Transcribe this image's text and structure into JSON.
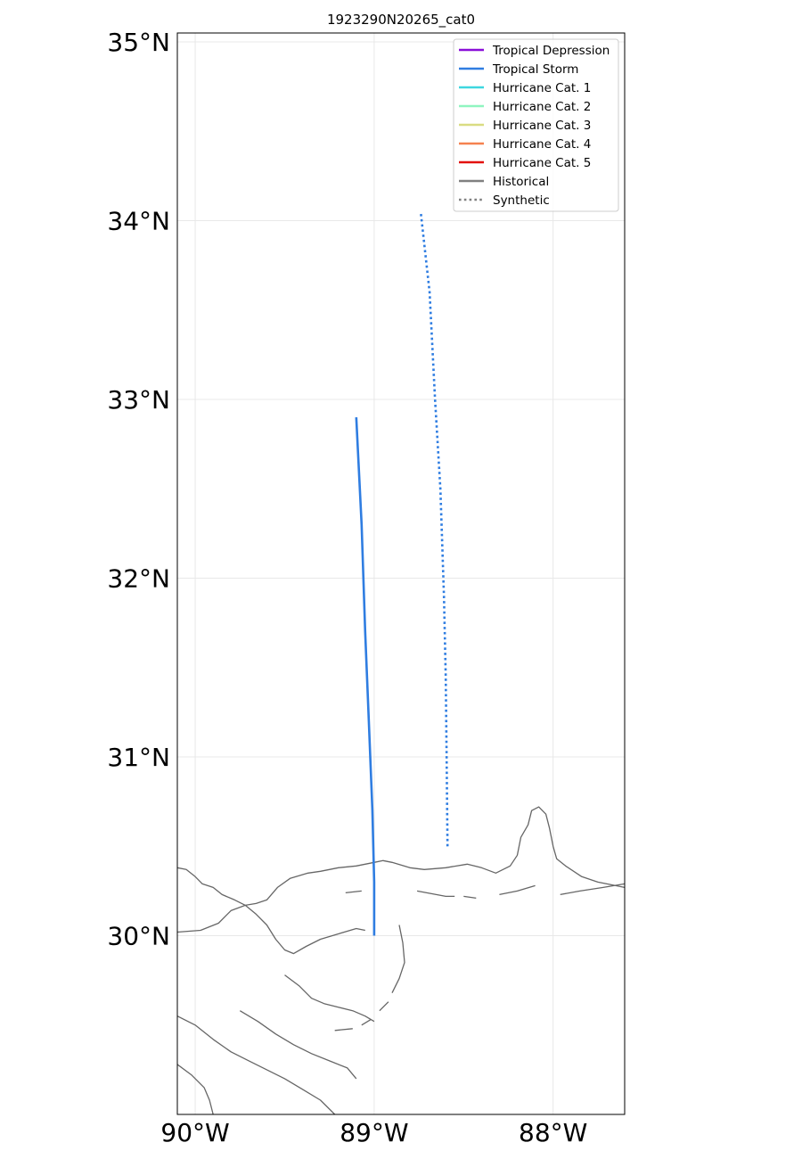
{
  "chart_data": {
    "type": "map",
    "title": "1923290N20265_cat0",
    "projection": "PlateCarree",
    "lon_range": [
      -90.1,
      -87.6
    ],
    "lat_range": [
      29.0,
      35.05
    ],
    "gridlines": true,
    "x_ticks": [
      {
        "value": -90,
        "label": "90°W"
      },
      {
        "value": -89,
        "label": "89°W"
      },
      {
        "value": -88,
        "label": "88°W"
      }
    ],
    "y_ticks": [
      {
        "value": 30,
        "label": "30°N"
      },
      {
        "value": 31,
        "label": "31°N"
      },
      {
        "value": 32,
        "label": "32°N"
      },
      {
        "value": 33,
        "label": "33°N"
      },
      {
        "value": 34,
        "label": "34°N"
      },
      {
        "value": 35,
        "label": "35°N"
      }
    ],
    "legend_position": "top-right",
    "legend": [
      {
        "label": "Tropical Depression",
        "color": "#8a0ed8",
        "style": "solid"
      },
      {
        "label": "Tropical Storm",
        "color": "#2f7de1",
        "style": "solid"
      },
      {
        "label": "Hurricane Cat. 1",
        "color": "#3ed7e0",
        "style": "solid"
      },
      {
        "label": "Hurricane Cat. 2",
        "color": "#8ff5c0",
        "style": "solid"
      },
      {
        "label": "Hurricane Cat. 3",
        "color": "#d9dc82",
        "style": "solid"
      },
      {
        "label": "Hurricane Cat. 4",
        "color": "#f5814f",
        "style": "solid"
      },
      {
        "label": "Hurricane Cat. 5",
        "color": "#e3110f",
        "style": "solid"
      },
      {
        "label": "Historical",
        "color": "#808080",
        "style": "solid"
      },
      {
        "label": "Synthetic",
        "color": "#808080",
        "style": "dotted"
      }
    ],
    "tracks": [
      {
        "kind": "historical",
        "category": "Tropical Storm",
        "color": "#2f7de1",
        "points": [
          [
            -89.0,
            30.0
          ],
          [
            -89.0,
            30.3
          ],
          [
            -89.01,
            30.7
          ],
          [
            -89.03,
            31.2
          ],
          [
            -89.05,
            31.7
          ],
          [
            -89.07,
            32.3
          ],
          [
            -89.1,
            32.9
          ]
        ]
      },
      {
        "kind": "synthetic",
        "category": "Tropical Storm",
        "color": "#2f7de1",
        "points": [
          [
            -88.59,
            30.5
          ],
          [
            -88.595,
            31.0
          ],
          [
            -88.6,
            31.45
          ],
          [
            -88.61,
            31.9
          ],
          [
            -88.63,
            32.5
          ],
          [
            -88.66,
            33.0
          ],
          [
            -88.69,
            33.6
          ],
          [
            -88.74,
            34.05
          ]
        ]
      }
    ],
    "coastlines": [
      [
        [
          -90.1,
          30.38
        ],
        [
          -90.05,
          30.37
        ],
        [
          -90.0,
          30.33
        ],
        [
          -89.96,
          30.29
        ],
        [
          -89.9,
          30.27
        ],
        [
          -89.85,
          30.23
        ],
        [
          -89.78,
          30.2
        ],
        [
          -89.72,
          30.17
        ],
        [
          -89.66,
          30.18
        ],
        [
          -89.6,
          30.2
        ],
        [
          -89.54,
          30.27
        ],
        [
          -89.47,
          30.32
        ],
        [
          -89.37,
          30.35
        ],
        [
          -89.3,
          30.36
        ],
        [
          -89.2,
          30.38
        ],
        [
          -89.1,
          30.39
        ],
        [
          -89.0,
          30.41
        ],
        [
          -88.95,
          30.42
        ],
        [
          -88.9,
          30.41
        ],
        [
          -88.8,
          30.38
        ],
        [
          -88.72,
          30.37
        ],
        [
          -88.6,
          30.38
        ],
        [
          -88.48,
          30.4
        ],
        [
          -88.4,
          30.38
        ],
        [
          -88.32,
          30.35
        ],
        [
          -88.24,
          30.39
        ],
        [
          -88.2,
          30.45
        ],
        [
          -88.18,
          30.55
        ],
        [
          -88.14,
          30.62
        ],
        [
          -88.12,
          30.7
        ],
        [
          -88.08,
          30.72
        ],
        [
          -88.04,
          30.68
        ],
        [
          -88.02,
          30.6
        ],
        [
          -88.0,
          30.5
        ],
        [
          -87.98,
          30.43
        ],
        [
          -87.93,
          30.39
        ],
        [
          -87.84,
          30.33
        ],
        [
          -87.75,
          30.3
        ],
        [
          -87.65,
          30.28
        ],
        [
          -87.6,
          30.27
        ]
      ],
      [
        [
          -90.1,
          30.02
        ],
        [
          -89.97,
          30.03
        ],
        [
          -89.87,
          30.07
        ],
        [
          -89.8,
          30.14
        ],
        [
          -89.72,
          30.17
        ],
        [
          -89.66,
          30.12
        ],
        [
          -89.6,
          30.06
        ],
        [
          -89.55,
          29.98
        ],
        [
          -89.5,
          29.92
        ],
        [
          -89.45,
          29.9
        ],
        [
          -89.38,
          29.94
        ],
        [
          -89.3,
          29.98
        ],
        [
          -89.2,
          30.01
        ],
        [
          -89.1,
          30.04
        ],
        [
          -89.05,
          30.03
        ]
      ],
      [
        [
          -89.5,
          29.78
        ],
        [
          -89.42,
          29.72
        ],
        [
          -89.35,
          29.65
        ],
        [
          -89.28,
          29.62
        ],
        [
          -89.2,
          29.6
        ],
        [
          -89.12,
          29.58
        ],
        [
          -89.05,
          29.55
        ],
        [
          -89.0,
          29.52
        ]
      ],
      [
        [
          -89.75,
          29.58
        ],
        [
          -89.65,
          29.52
        ],
        [
          -89.55,
          29.45
        ],
        [
          -89.45,
          29.39
        ],
        [
          -89.35,
          29.34
        ],
        [
          -89.25,
          29.3
        ],
        [
          -89.15,
          29.26
        ],
        [
          -89.1,
          29.2
        ]
      ],
      [
        [
          -90.1,
          29.55
        ],
        [
          -90.0,
          29.5
        ],
        [
          -89.9,
          29.42
        ],
        [
          -89.8,
          29.35
        ],
        [
          -89.7,
          29.3
        ],
        [
          -89.6,
          29.25
        ],
        [
          -89.5,
          29.2
        ],
        [
          -89.4,
          29.14
        ],
        [
          -89.3,
          29.08
        ],
        [
          -89.22,
          29.0
        ]
      ],
      [
        [
          -90.1,
          29.28
        ],
        [
          -90.02,
          29.22
        ],
        [
          -89.95,
          29.15
        ],
        [
          -89.92,
          29.08
        ],
        [
          -89.9,
          29.0
        ]
      ],
      [
        [
          -88.86,
          30.06
        ],
        [
          -88.84,
          29.96
        ],
        [
          -88.83,
          29.85
        ],
        [
          -88.86,
          29.76
        ],
        [
          -88.9,
          29.68
        ]
      ],
      [
        [
          -88.92,
          29.63
        ],
        [
          -88.97,
          29.58
        ]
      ],
      [
        [
          -89.02,
          29.53
        ],
        [
          -89.07,
          29.5
        ]
      ],
      [
        [
          -89.12,
          29.48
        ],
        [
          -89.22,
          29.47
        ]
      ],
      [
        [
          -89.16,
          30.24
        ],
        [
          -89.07,
          30.25
        ]
      ],
      [
        [
          -88.76,
          30.25
        ],
        [
          -88.6,
          30.22
        ],
        [
          -88.55,
          30.22
        ]
      ],
      [
        [
          -88.5,
          30.22
        ],
        [
          -88.43,
          30.21
        ]
      ],
      [
        [
          -88.3,
          30.23
        ],
        [
          -88.2,
          30.25
        ],
        [
          -88.1,
          30.28
        ]
      ],
      [
        [
          -87.96,
          30.23
        ],
        [
          -87.85,
          30.25
        ],
        [
          -87.72,
          30.27
        ],
        [
          -87.6,
          30.29
        ]
      ]
    ]
  }
}
